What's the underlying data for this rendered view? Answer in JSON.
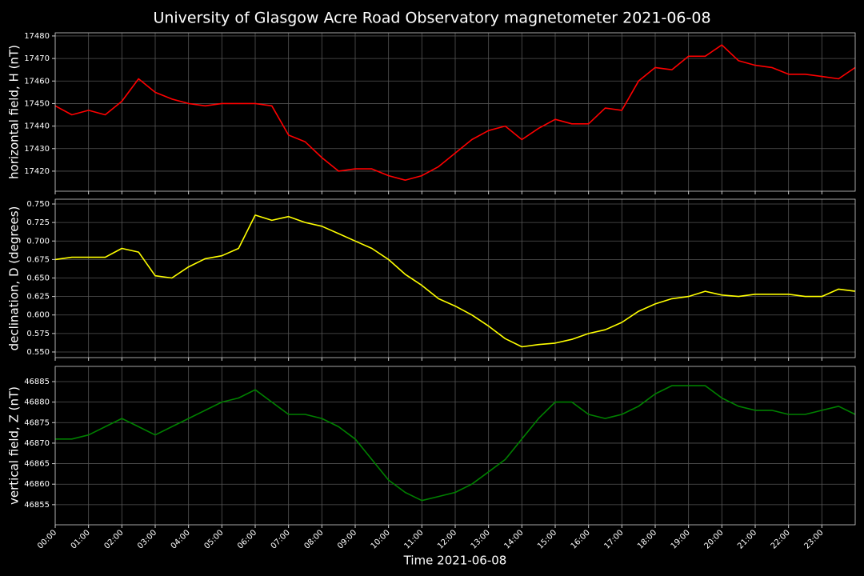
{
  "title": "University of Glasgow Acre Road Observatory magnetometer 2021-06-08",
  "x_axis": {
    "label": "Time 2021-06-08",
    "x": [
      "00:00",
      "00:30",
      "01:00",
      "01:30",
      "02:00",
      "02:30",
      "03:00",
      "03:30",
      "04:00",
      "04:30",
      "05:00",
      "05:30",
      "06:00",
      "06:30",
      "07:00",
      "07:30",
      "08:00",
      "08:30",
      "09:00",
      "09:30",
      "10:00",
      "10:30",
      "11:00",
      "11:30",
      "12:00",
      "12:30",
      "13:00",
      "13:30",
      "14:00",
      "14:30",
      "15:00",
      "15:30",
      "16:00",
      "16:30",
      "17:00",
      "17:30",
      "18:00",
      "18:30",
      "19:00",
      "19:30",
      "20:00",
      "20:30",
      "21:00",
      "21:30",
      "22:00",
      "22:30",
      "23:00",
      "23:30",
      "24:00"
    ],
    "xlim": [
      "00:00",
      "24:00"
    ],
    "xticks": [
      "00:00",
      "01:00",
      "02:00",
      "03:00",
      "04:00",
      "05:00",
      "06:00",
      "07:00",
      "08:00",
      "09:00",
      "10:00",
      "11:00",
      "12:00",
      "13:00",
      "14:00",
      "15:00",
      "16:00",
      "17:00",
      "18:00",
      "19:00",
      "20:00",
      "21:00",
      "22:00",
      "23:00"
    ]
  },
  "chart_data": [
    {
      "type": "line",
      "y_label": "horizontal field, H (nT)",
      "color": "#ff0000",
      "grid": true,
      "values": [
        17449,
        17445,
        17447,
        17445,
        17451,
        17461,
        17455,
        17452,
        17450,
        17449,
        17450,
        17450,
        17450,
        17449,
        17436,
        17433,
        17426,
        17420,
        17421,
        17421,
        17418,
        17416,
        17418,
        17422,
        17428,
        17434,
        17438,
        17440,
        17434,
        17439,
        17443,
        17441,
        17441,
        17448,
        17447,
        17460,
        17466,
        17465,
        17471,
        17471,
        17476,
        17469,
        17467,
        17466,
        17463,
        17463,
        17462,
        17461,
        17466
      ],
      "ylim": [
        17411.1,
        17481.4
      ],
      "yticks": [
        17420,
        17430,
        17440,
        17450,
        17460,
        17470,
        17480
      ]
    },
    {
      "type": "line",
      "y_label": "declination, D (degrees)",
      "color": "#ffff00",
      "grid": true,
      "values": [
        0.675,
        0.678,
        0.678,
        0.678,
        0.69,
        0.685,
        0.653,
        0.65,
        0.665,
        0.676,
        0.68,
        0.69,
        0.735,
        0.728,
        0.733,
        0.725,
        0.72,
        0.71,
        0.7,
        0.69,
        0.675,
        0.655,
        0.64,
        0.622,
        0.612,
        0.6,
        0.585,
        0.568,
        0.557,
        0.56,
        0.562,
        0.567,
        0.575,
        0.58,
        0.59,
        0.605,
        0.615,
        0.622,
        0.625,
        0.632,
        0.627,
        0.625,
        0.628,
        0.628,
        0.628,
        0.625,
        0.625,
        0.635,
        0.632
      ],
      "ylim": [
        0.5424,
        0.7565
      ],
      "yticks": [
        {
          "value": 0.55,
          "label": "0.550"
        },
        {
          "value": 0.575,
          "label": "0.575"
        },
        {
          "value": 0.6,
          "label": "0.600"
        },
        {
          "value": 0.625,
          "label": "0.625"
        },
        {
          "value": 0.65,
          "label": "0.650"
        },
        {
          "value": 0.675,
          "label": "0.675"
        },
        {
          "value": 0.7,
          "label": "0.700"
        },
        {
          "value": 0.725,
          "label": "0.725"
        },
        {
          "value": 0.75,
          "label": "0.750"
        }
      ]
    },
    {
      "type": "line",
      "y_label": "vertical field, Z (nT)",
      "color": "#008000",
      "grid": true,
      "values": [
        46871,
        46871,
        46872,
        46874,
        46876,
        46874,
        46872,
        46874,
        46876,
        46878,
        46880,
        46881,
        46883,
        46880,
        46877,
        46877,
        46876,
        46874,
        46871,
        46866,
        46861,
        46858,
        46856,
        46857,
        46858,
        46860,
        46863,
        46866,
        46871,
        46876,
        46880,
        46880,
        46877,
        46876,
        46877,
        46879,
        46882,
        46884,
        46884,
        46884,
        46881,
        46879,
        46878,
        46878,
        46877,
        46877,
        46878,
        46879,
        46877
      ],
      "ylim": [
        46850.1,
        46888.7
      ],
      "yticks": [
        46855,
        46860,
        46865,
        46870,
        46875,
        46880,
        46885
      ]
    }
  ]
}
